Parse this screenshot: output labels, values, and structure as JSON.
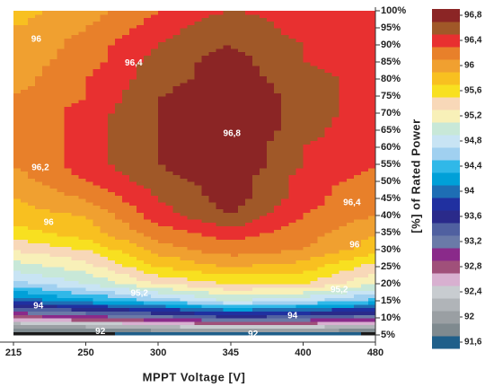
{
  "chart_data": {
    "type": "contour",
    "x_label": "MPPT Voltage [V]",
    "y_label": "[%] of Rated Power",
    "x": [
      215,
      250,
      300,
      345,
      400,
      480
    ],
    "y": [
      5,
      10,
      15,
      20,
      25,
      30,
      35,
      40,
      45,
      50,
      55,
      60,
      65,
      70,
      75,
      80,
      85,
      90,
      95,
      100
    ],
    "z": [
      [
        91.4,
        91.4,
        91.5,
        91.5,
        91.5,
        91.4
      ],
      [
        92.8,
        93.0,
        93.2,
        93.5,
        93.4,
        93.2
      ],
      [
        94.0,
        94.3,
        94.6,
        95.0,
        94.8,
        94.5
      ],
      [
        94.7,
        95.0,
        95.4,
        95.6,
        95.6,
        95.2
      ],
      [
        95.1,
        95.3,
        95.8,
        96.0,
        95.9,
        95.5
      ],
      [
        95.4,
        95.6,
        96.1,
        96.3,
        96.2,
        95.9
      ],
      [
        95.7,
        95.9,
        96.3,
        96.5,
        96.3,
        96.0
      ],
      [
        95.9,
        96.0,
        96.5,
        96.8,
        96.4,
        96.2
      ],
      [
        96.0,
        96.2,
        96.6,
        96.9,
        96.5,
        96.2
      ],
      [
        96.1,
        96.4,
        96.7,
        96.9,
        96.5,
        96.3
      ],
      [
        96.2,
        96.5,
        96.8,
        97.0,
        96.6,
        96.4
      ],
      [
        96.2,
        96.5,
        96.8,
        97.0,
        96.6,
        96.4
      ],
      [
        96.2,
        96.5,
        96.8,
        97.0,
        96.7,
        96.4
      ],
      [
        96.2,
        96.5,
        96.8,
        97.0,
        96.7,
        96.5
      ],
      [
        96.2,
        96.4,
        96.8,
        97.0,
        96.7,
        96.5
      ],
      [
        96.1,
        96.4,
        96.7,
        96.9,
        96.7,
        96.5
      ],
      [
        96.1,
        96.3,
        96.7,
        96.9,
        96.6,
        96.5
      ],
      [
        96.0,
        96.3,
        96.6,
        96.8,
        96.6,
        96.5
      ],
      [
        96.0,
        96.2,
        96.5,
        96.8,
        96.5,
        96.4
      ],
      [
        95.9,
        96.1,
        96.4,
        96.6,
        96.5,
        96.4
      ]
    ],
    "xticks": [
      215,
      250,
      300,
      345,
      400,
      480
    ],
    "ylim": [
      5,
      100
    ],
    "yticks": [
      {
        "value": 5,
        "label": "5%"
      },
      {
        "value": 10,
        "label": "10%"
      },
      {
        "value": 15,
        "label": "15%"
      },
      {
        "value": 20,
        "label": "20%"
      },
      {
        "value": 25,
        "label": "25%"
      },
      {
        "value": 30,
        "label": "30%"
      },
      {
        "value": 35,
        "label": "35%"
      },
      {
        "value": 40,
        "label": "40%"
      },
      {
        "value": 45,
        "label": "45%"
      },
      {
        "value": 50,
        "label": "50%"
      },
      {
        "value": 55,
        "label": "55%"
      },
      {
        "value": 60,
        "label": "60%"
      },
      {
        "value": 65,
        "label": "65%"
      },
      {
        "value": 70,
        "label": "70%"
      },
      {
        "value": 75,
        "label": "75%"
      },
      {
        "value": 80,
        "label": "80%"
      },
      {
        "value": 85,
        "label": "85%"
      },
      {
        "value": 90,
        "label": "90%"
      },
      {
        "value": 95,
        "label": "95%"
      },
      {
        "value": 100,
        "label": "100%"
      }
    ],
    "levels": [
      91.6,
      91.8,
      92.0,
      92.2,
      92.4,
      92.6,
      92.8,
      93.0,
      93.2,
      93.4,
      93.6,
      93.8,
      94.0,
      94.2,
      94.4,
      94.6,
      94.8,
      95.0,
      95.2,
      95.4,
      95.6,
      95.8,
      96.0,
      96.2,
      96.4,
      96.6,
      96.8
    ],
    "colors": [
      "#1f5f8a",
      "#7f8a8f",
      "#9a9fa3",
      "#b0b4b8",
      "#c8ccd0",
      "#d8b0d0",
      "#a0507a",
      "#8a2a8a",
      "#6a7aa8",
      "#5060a0",
      "#2a2a8a",
      "#2030a0",
      "#1e6eb4",
      "#00a0d8",
      "#30b8e8",
      "#a0d0f0",
      "#c8e4f4",
      "#c8e8d8",
      "#f8f0b8",
      "#f8d8b8",
      "#f8e020",
      "#f8c020",
      "#f0a030",
      "#e8802a",
      "#e83030",
      "#a05828",
      "#8b2525"
    ],
    "below_color": "#1a1a1a",
    "colorbar_ticks": [
      {
        "value": 96.8,
        "label": "96,8"
      },
      {
        "value": 96.4,
        "label": "96,4"
      },
      {
        "value": 96,
        "label": "96"
      },
      {
        "value": 95.6,
        "label": "95,6"
      },
      {
        "value": 95.2,
        "label": "95,2"
      },
      {
        "value": 94.8,
        "label": "94,8"
      },
      {
        "value": 94.4,
        "label": "94,4"
      },
      {
        "value": 94,
        "label": "94"
      },
      {
        "value": 93.6,
        "label": "93,6"
      },
      {
        "value": 93.2,
        "label": "93,2"
      },
      {
        "value": 92.8,
        "label": "92,8"
      },
      {
        "value": 92.4,
        "label": "92,4"
      },
      {
        "value": 92,
        "label": "92"
      },
      {
        "value": 91.6,
        "label": "91,6"
      }
    ],
    "annotations": [
      {
        "text": "96",
        "x": 226,
        "y": 91.6
      },
      {
        "text": "96,4",
        "x": 283,
        "y": 84.7
      },
      {
        "text": "96,2",
        "x": 228,
        "y": 54
      },
      {
        "text": "96,8",
        "x": 346,
        "y": 64
      },
      {
        "text": "96,4",
        "x": 454,
        "y": 43.7
      },
      {
        "text": "96",
        "x": 232,
        "y": 37.9
      },
      {
        "text": "96",
        "x": 457,
        "y": 31.3
      },
      {
        "text": "95,2",
        "x": 287,
        "y": 17.1
      },
      {
        "text": "95,2",
        "x": 440,
        "y": 18.2
      },
      {
        "text": "94",
        "x": 227,
        "y": 13.4
      },
      {
        "text": "94",
        "x": 392,
        "y": 10.5
      },
      {
        "text": "92",
        "x": 260,
        "y": 6
      },
      {
        "text": "92",
        "x": 362,
        "y": 5.2
      }
    ]
  }
}
